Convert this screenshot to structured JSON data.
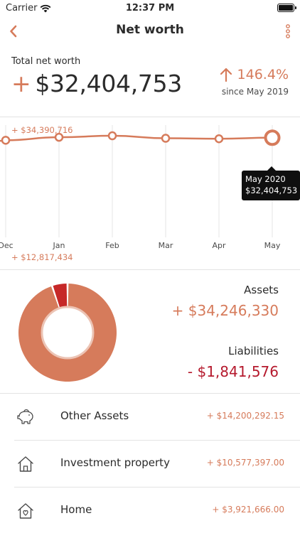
{
  "status": {
    "carrier": "Carrier",
    "time": "12:37 PM"
  },
  "nav": {
    "title": "Net worth"
  },
  "summary": {
    "label": "Total net worth",
    "sign": "+",
    "total": "$32,404,753",
    "change": "146.4%",
    "since": "since May 2019"
  },
  "chart": {
    "max_label": "+ $34,390,716",
    "min_label": "+ $12,817,434",
    "tooltip_month": "May 2020",
    "tooltip_value": "$32,404,753"
  },
  "chart_data": {
    "type": "line",
    "x": [
      "Dec",
      "Jan",
      "Feb",
      "Mar",
      "Apr",
      "May"
    ],
    "series": [
      {
        "values": [
          31900000,
          32500000,
          32800000,
          32300000,
          32200000,
          32404753
        ]
      }
    ],
    "ylim": [
      12817434,
      34390716
    ],
    "ylabel": "",
    "xlabel": "",
    "grid": true,
    "line_color": "#d67b5b"
  },
  "breakdown": {
    "assets_label": "Assets",
    "assets_value": "+ $34,246,330",
    "liabilities_label": "Liabilities",
    "liabilities_value": "- $1,841,576",
    "assets_amount": 34246330,
    "liabilities_amount": 1841576,
    "assets_color": "#d67b5b",
    "liabilities_color": "#c62828"
  },
  "items": [
    {
      "name": "Other Assets",
      "amount": "+ $14,200,292.15",
      "icon": "piggy-bank-icon"
    },
    {
      "name": "Investment property",
      "amount": "+ $10,577,397.00",
      "icon": "house-icon"
    },
    {
      "name": "Home",
      "amount": "+ $3,921,666.00",
      "icon": "home-heart-icon"
    }
  ],
  "colors": {
    "accent": "#d67b5b",
    "negative": "#b5192d"
  }
}
